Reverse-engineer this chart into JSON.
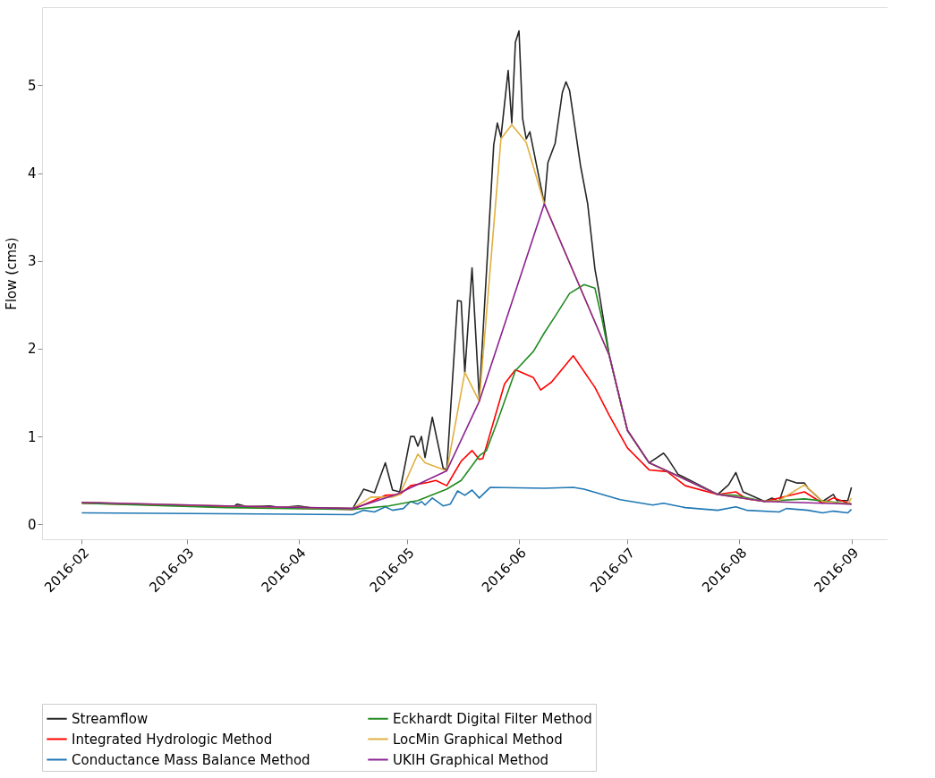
{
  "chart_data": {
    "type": "line",
    "ylabel": "Flow (cms)",
    "xlim": [
      "2016-01-21",
      "2016-09-11"
    ],
    "xticks": [
      "2016-02",
      "2016-03",
      "2016-04",
      "2016-05",
      "2016-06",
      "2016-07",
      "2016-08",
      "2016-09"
    ],
    "ylim": [
      -0.17,
      5.89
    ],
    "yticks": [
      0,
      1,
      2,
      3,
      4,
      5
    ],
    "grid": false,
    "legend": "bottom",
    "marker": "none",
    "line_style": "solid",
    "series": [
      {
        "name": "Streamflow",
        "color": "#262626",
        "x": [
          "2016-02-01",
          "2016-02-15",
          "2016-03-02",
          "2016-03-14",
          "2016-03-15",
          "2016-03-18",
          "2016-03-24",
          "2016-03-27",
          "2016-04-01",
          "2016-04-04",
          "2016-04-16",
          "2016-04-19",
          "2016-04-22",
          "2016-04-25",
          "2016-04-27",
          "2016-04-29",
          "2016-05-02",
          "2016-05-03",
          "2016-05-04",
          "2016-05-05",
          "2016-05-06",
          "2016-05-08",
          "2016-05-11",
          "2016-05-12",
          "2016-05-15",
          "2016-05-16",
          "2016-05-17",
          "2016-05-19",
          "2016-05-21",
          "2016-05-25",
          "2016-05-26",
          "2016-05-27",
          "2016-05-29",
          "2016-05-30",
          "2016-05-31",
          "2016-06-01",
          "2016-06-02",
          "2016-06-03",
          "2016-06-04",
          "2016-06-08",
          "2016-06-09",
          "2016-06-11",
          "2016-06-13",
          "2016-06-14",
          "2016-06-15",
          "2016-06-18",
          "2016-06-20",
          "2016-06-22",
          "2016-06-23",
          "2016-06-26",
          "2016-07-01",
          "2016-07-07",
          "2016-07-11",
          "2016-07-12",
          "2016-07-15",
          "2016-07-26",
          "2016-07-29",
          "2016-07-31",
          "2016-08-02",
          "2016-08-08",
          "2016-08-10",
          "2016-08-12",
          "2016-08-14",
          "2016-08-17",
          "2016-08-19",
          "2016-08-20",
          "2016-08-24",
          "2016-08-27",
          "2016-08-28",
          "2016-08-31",
          "2016-09-01"
        ],
        "values": [
          0.25,
          0.23,
          0.21,
          0.2,
          0.23,
          0.2,
          0.21,
          0.19,
          0.21,
          0.19,
          0.18,
          0.4,
          0.36,
          0.7,
          0.39,
          0.37,
          1.0,
          1.0,
          0.89,
          1.0,
          0.76,
          1.22,
          0.64,
          0.62,
          2.55,
          2.54,
          1.73,
          2.92,
          1.44,
          4.32,
          4.57,
          4.41,
          5.17,
          4.57,
          5.49,
          5.62,
          4.62,
          4.39,
          4.47,
          3.65,
          4.12,
          4.34,
          4.92,
          5.04,
          4.94,
          4.09,
          3.65,
          2.91,
          2.68,
          1.92,
          1.07,
          0.7,
          0.81,
          0.76,
          0.57,
          0.34,
          0.45,
          0.59,
          0.37,
          0.26,
          0.3,
          0.26,
          0.51,
          0.47,
          0.47,
          0.41,
          0.26,
          0.34,
          0.27,
          0.27,
          0.42
        ]
      },
      {
        "name": "Integrated Hydrologic Method",
        "color": "#ff0000",
        "x": [
          "2016-02-01",
          "2016-04-16",
          "2016-04-25",
          "2016-04-29",
          "2016-05-02",
          "2016-05-07",
          "2016-05-09",
          "2016-05-12",
          "2016-05-16",
          "2016-05-19",
          "2016-05-21",
          "2016-05-22",
          "2016-05-28",
          "2016-05-31",
          "2016-06-05",
          "2016-06-07",
          "2016-06-10",
          "2016-06-16",
          "2016-06-22",
          "2016-06-26",
          "2016-07-01",
          "2016-07-07",
          "2016-07-12",
          "2016-07-17",
          "2016-07-26",
          "2016-07-31",
          "2016-08-03",
          "2016-08-08",
          "2016-08-19",
          "2016-08-24",
          "2016-08-27",
          "2016-09-01"
        ],
        "values": [
          0.24,
          0.17,
          0.33,
          0.34,
          0.44,
          0.48,
          0.5,
          0.44,
          0.72,
          0.84,
          0.74,
          0.75,
          1.6,
          1.76,
          1.67,
          1.53,
          1.62,
          1.92,
          1.56,
          1.24,
          0.87,
          0.62,
          0.6,
          0.44,
          0.34,
          0.37,
          0.29,
          0.26,
          0.37,
          0.24,
          0.3,
          0.23
        ]
      },
      {
        "name": "Conductance Mass Balance Method",
        "color": "#1f77b4",
        "x": [
          "2016-02-01",
          "2016-03-12",
          "2016-04-16",
          "2016-04-19",
          "2016-04-22",
          "2016-04-25",
          "2016-04-27",
          "2016-04-30",
          "2016-05-02",
          "2016-05-04",
          "2016-05-05",
          "2016-05-06",
          "2016-05-08",
          "2016-05-11",
          "2016-05-13",
          "2016-05-15",
          "2016-05-17",
          "2016-05-19",
          "2016-05-21",
          "2016-05-24",
          "2016-06-08",
          "2016-06-16",
          "2016-06-19",
          "2016-06-29",
          "2016-07-08",
          "2016-07-11",
          "2016-07-17",
          "2016-07-26",
          "2016-07-31",
          "2016-08-03",
          "2016-08-12",
          "2016-08-14",
          "2016-08-20",
          "2016-08-24",
          "2016-08-27",
          "2016-08-31",
          "2016-09-01"
        ],
        "values": [
          0.13,
          0.12,
          0.11,
          0.16,
          0.14,
          0.2,
          0.16,
          0.18,
          0.26,
          0.23,
          0.26,
          0.22,
          0.3,
          0.21,
          0.23,
          0.38,
          0.33,
          0.39,
          0.3,
          0.42,
          0.41,
          0.42,
          0.4,
          0.28,
          0.22,
          0.24,
          0.19,
          0.16,
          0.2,
          0.16,
          0.14,
          0.18,
          0.16,
          0.13,
          0.15,
          0.13,
          0.17
        ]
      },
      {
        "name": "Eckhardt Digital Filter Method",
        "color": "#228b22",
        "x": [
          "2016-02-01",
          "2016-03-12",
          "2016-04-16",
          "2016-04-26",
          "2016-05-04",
          "2016-05-12",
          "2016-05-16",
          "2016-05-21",
          "2016-05-23",
          "2016-05-26",
          "2016-05-31",
          "2016-06-05",
          "2016-06-08",
          "2016-06-11",
          "2016-06-15",
          "2016-06-19",
          "2016-06-22",
          "2016-06-24",
          "2016-06-26",
          "2016-07-01",
          "2016-07-07",
          "2016-07-15",
          "2016-07-26",
          "2016-07-31",
          "2016-08-08",
          "2016-08-19",
          "2016-09-01"
        ],
        "values": [
          0.24,
          0.19,
          0.17,
          0.21,
          0.27,
          0.4,
          0.5,
          0.78,
          0.84,
          1.17,
          1.75,
          1.97,
          2.18,
          2.37,
          2.63,
          2.73,
          2.69,
          2.33,
          1.92,
          1.07,
          0.7,
          0.55,
          0.34,
          0.33,
          0.26,
          0.29,
          0.23
        ]
      },
      {
        "name": "LocMin Graphical Method",
        "color": "#e0b040",
        "x": [
          "2016-02-01",
          "2016-03-12",
          "2016-04-16",
          "2016-04-21",
          "2016-04-27",
          "2016-04-29",
          "2016-05-04",
          "2016-05-06",
          "2016-05-12",
          "2016-05-17",
          "2016-05-21",
          "2016-05-27",
          "2016-05-30",
          "2016-06-03",
          "2016-06-08",
          "2016-06-26",
          "2016-07-01",
          "2016-07-07",
          "2016-07-15",
          "2016-07-26",
          "2016-07-31",
          "2016-08-08",
          "2016-08-12",
          "2016-08-19",
          "2016-08-24",
          "2016-08-31",
          "2016-09-01"
        ],
        "values": [
          0.25,
          0.21,
          0.18,
          0.31,
          0.31,
          0.34,
          0.8,
          0.7,
          0.61,
          1.73,
          1.4,
          4.39,
          4.55,
          4.35,
          3.65,
          1.92,
          1.07,
          0.7,
          0.55,
          0.34,
          0.31,
          0.26,
          0.27,
          0.45,
          0.26,
          0.23,
          0.3
        ]
      },
      {
        "name": "UKIH Graphical Method",
        "color": "#8b2290",
        "x": [
          "2016-02-01",
          "2016-03-12",
          "2016-04-16",
          "2016-04-28",
          "2016-05-12",
          "2016-05-21",
          "2016-06-08",
          "2016-06-26",
          "2016-07-01",
          "2016-07-07",
          "2016-07-15",
          "2016-07-26",
          "2016-08-08",
          "2016-09-01"
        ],
        "values": [
          0.25,
          0.21,
          0.18,
          0.34,
          0.61,
          1.4,
          3.65,
          1.92,
          1.07,
          0.7,
          0.55,
          0.34,
          0.26,
          0.23
        ]
      }
    ]
  }
}
